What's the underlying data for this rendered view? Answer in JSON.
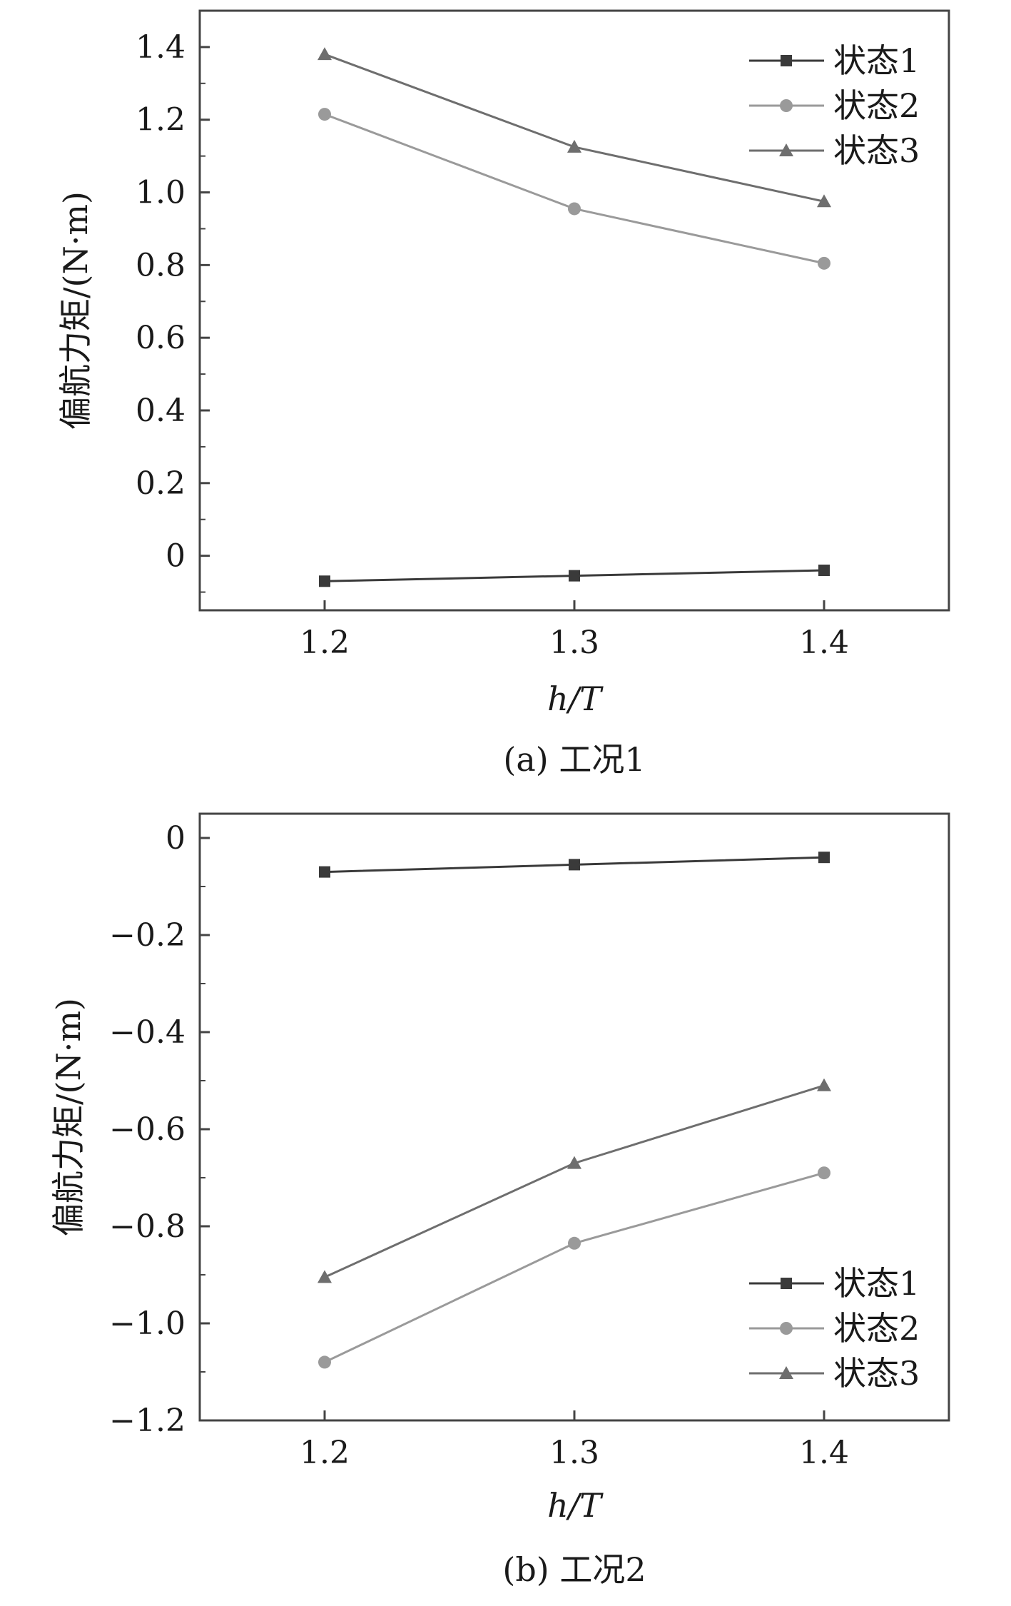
{
  "chart_data": [
    {
      "type": "line",
      "caption": "(a) 工况1",
      "xlabel": "h/T",
      "ylabel": "偏航力矩/(N·m)",
      "x": [
        1.2,
        1.3,
        1.4
      ],
      "xlim": [
        1.15,
        1.45
      ],
      "ylim": [
        -0.15,
        1.5
      ],
      "xticks": [
        "1.2",
        "1.3",
        "1.4"
      ],
      "yticks": [
        {
          "value": 0,
          "label": "0"
        },
        {
          "value": 0.2,
          "label": "0.2"
        },
        {
          "value": 0.4,
          "label": "0.4"
        },
        {
          "value": 0.6,
          "label": "0.6"
        },
        {
          "value": 0.8,
          "label": "0.8"
        },
        {
          "value": 1.0,
          "label": "1.0"
        },
        {
          "value": 1.2,
          "label": "1.2"
        },
        {
          "value": 1.4,
          "label": "1.4"
        }
      ],
      "legend_position": "top-right",
      "grid": false,
      "series": [
        {
          "name": "状态1",
          "marker": "square",
          "color": "#3a3a3a",
          "values": [
            -0.07,
            -0.055,
            -0.04
          ]
        },
        {
          "name": "状态2",
          "marker": "circle",
          "color": "#9a9a9a",
          "values": [
            1.215,
            0.955,
            0.805
          ]
        },
        {
          "name": "状态3",
          "marker": "triangle",
          "color": "#6e6e6e",
          "values": [
            1.38,
            1.125,
            0.975
          ]
        }
      ]
    },
    {
      "type": "line",
      "caption": "(b) 工况2",
      "xlabel": "h/T",
      "ylabel": "偏航力矩/(N·m)",
      "x": [
        1.2,
        1.3,
        1.4
      ],
      "xlim": [
        1.15,
        1.45
      ],
      "ylim": [
        -1.2,
        0.05
      ],
      "xticks": [
        "1.2",
        "1.3",
        "1.4"
      ],
      "yticks": [
        {
          "value": 0,
          "label": "0"
        },
        {
          "value": -0.2,
          "label": "−0.2"
        },
        {
          "value": -0.4,
          "label": "−0.4"
        },
        {
          "value": -0.6,
          "label": "−0.6"
        },
        {
          "value": -0.8,
          "label": "−0.8"
        },
        {
          "value": -1.0,
          "label": "−1.0"
        },
        {
          "value": -1.2,
          "label": "−1.2"
        }
      ],
      "legend_position": "bottom-right",
      "grid": false,
      "series": [
        {
          "name": "状态1",
          "marker": "square",
          "color": "#3a3a3a",
          "values": [
            -0.07,
            -0.055,
            -0.04
          ]
        },
        {
          "name": "状态2",
          "marker": "circle",
          "color": "#9a9a9a",
          "values": [
            -1.08,
            -0.835,
            -0.69
          ]
        },
        {
          "name": "状态3",
          "marker": "triangle",
          "color": "#6e6e6e",
          "values": [
            -0.905,
            -0.67,
            -0.51
          ]
        }
      ]
    }
  ]
}
